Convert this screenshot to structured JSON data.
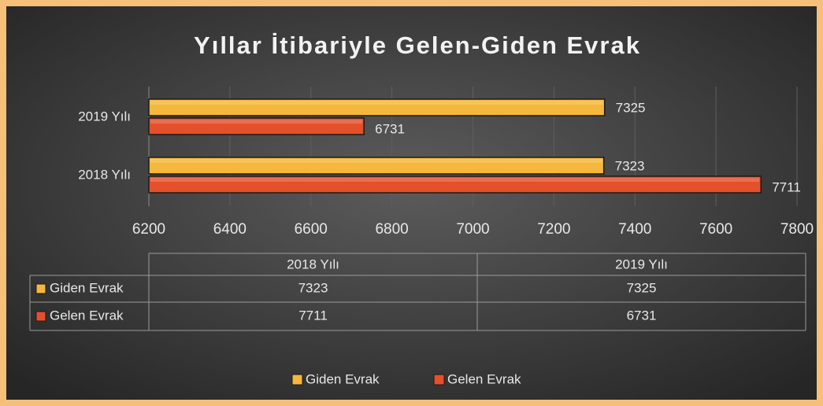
{
  "chart_data": {
    "type": "bar",
    "orientation": "horizontal",
    "title": "Yıllar İtibariyle Gelen-Giden Evrak",
    "categories": [
      "2018 Yılı",
      "2019 Yılı"
    ],
    "series": [
      {
        "name": "Giden Evrak",
        "color": "#f5b73c",
        "values": [
          7323,
          7325
        ]
      },
      {
        "name": "Gelen Evrak",
        "color": "#e4502a",
        "values": [
          7711,
          6731
        ]
      }
    ],
    "xlim": [
      6200,
      7800
    ],
    "xticks": [
      6200,
      6400,
      6600,
      6800,
      7000,
      7200,
      7400,
      7600,
      7800
    ],
    "grid": true,
    "legend": "bottom"
  }
}
